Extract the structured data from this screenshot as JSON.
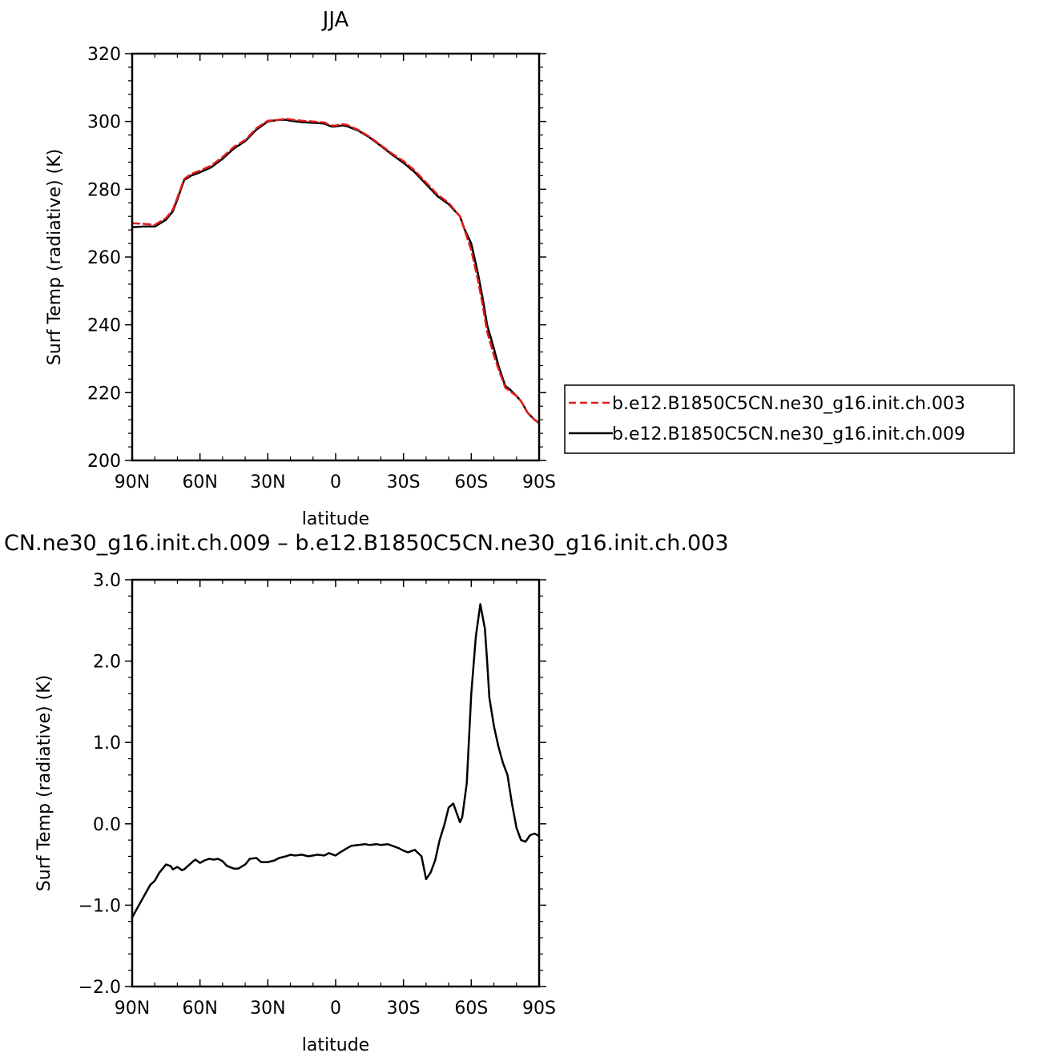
{
  "chart_data": [
    {
      "type": "line",
      "title": "JJA",
      "xlabel": "latitude",
      "ylabel": "Surf Temp (radiative) (K)",
      "xlim": [
        90,
        -90
      ],
      "ylim": [
        200,
        320
      ],
      "x_ticks": [
        90,
        60,
        30,
        0,
        -30,
        -60,
        -90
      ],
      "x_tick_labels": [
        "90N",
        "60N",
        "30N",
        "0",
        "30S",
        "60S",
        "90S"
      ],
      "y_ticks": [
        200,
        220,
        240,
        260,
        280,
        300,
        320
      ],
      "y_tick_labels": [
        "200",
        "220",
        "240",
        "260",
        "280",
        "300",
        "320"
      ],
      "legend_placement": "right, outside plot",
      "series": [
        {
          "name": "b.e12.B1850C5CN.ne30_g16.init.ch.003",
          "color": "#e41a1c",
          "dash": "dashed",
          "x": [
            90,
            85,
            80,
            75,
            72,
            70,
            67,
            64,
            60,
            55,
            50,
            45,
            40,
            35,
            30,
            25,
            22,
            20,
            15,
            10,
            5,
            2,
            0,
            -3,
            -5,
            -10,
            -15,
            -20,
            -25,
            -30,
            -35,
            -40,
            -45,
            -50,
            -55,
            -57,
            -60,
            -63,
            -65,
            -67,
            -70,
            -72,
            -75,
            -77,
            -80,
            -82,
            -85,
            -88,
            -90
          ],
          "y": [
            270,
            269.8,
            269.5,
            271.5,
            274,
            277.5,
            283,
            284.5,
            285.5,
            287,
            289.5,
            292.5,
            294.5,
            298,
            300.2,
            300.5,
            300.8,
            300.6,
            300.2,
            300,
            299.7,
            298.8,
            298.8,
            299.2,
            299,
            297.5,
            295.5,
            293,
            290.5,
            288.3,
            285.5,
            282,
            278.5,
            276,
            272,
            268,
            262,
            253,
            246,
            238,
            231,
            227,
            221.5,
            220.5,
            219,
            217.5,
            214,
            212,
            211
          ]
        },
        {
          "name": "b.e12.B1850C5CN.ne30_g16.init.ch.009",
          "color": "#000000",
          "dash": "solid",
          "x": [
            90,
            85,
            80,
            75,
            72,
            70,
            67,
            64,
            60,
            55,
            50,
            45,
            40,
            35,
            30,
            25,
            22,
            20,
            15,
            10,
            5,
            2,
            0,
            -3,
            -5,
            -10,
            -15,
            -20,
            -25,
            -30,
            -35,
            -40,
            -45,
            -50,
            -55,
            -57,
            -60,
            -63,
            -65,
            -67,
            -70,
            -72,
            -75,
            -77,
            -80,
            -82,
            -85,
            -88,
            -90
          ],
          "y": [
            268.8,
            269,
            269,
            271,
            273.5,
            277,
            282.7,
            284,
            285,
            286.5,
            289,
            292,
            294.2,
            297.6,
            300,
            300.5,
            300.5,
            300.2,
            299.8,
            299.6,
            299.4,
            298.5,
            298.5,
            298.8,
            298.6,
            297.3,
            295.3,
            292.8,
            290.2,
            287.8,
            285,
            281.5,
            278,
            275.6,
            272,
            268.2,
            264,
            255,
            248,
            240,
            233,
            228,
            222,
            221,
            219,
            217.5,
            214,
            212,
            211
          ]
        }
      ]
    },
    {
      "type": "line",
      "title": "CN.ne30_g16.init.ch.009 – b.e12.B1850C5CN.ne30_g16.init.ch.003",
      "xlabel": "latitude",
      "ylabel": "Surf Temp (radiative) (K)",
      "xlim": [
        90,
        -90
      ],
      "ylim": [
        -2.0,
        3.0
      ],
      "x_ticks": [
        90,
        60,
        30,
        0,
        -30,
        -60,
        -90
      ],
      "x_tick_labels": [
        "90N",
        "60N",
        "30N",
        "0",
        "30S",
        "60S",
        "90S"
      ],
      "y_ticks": [
        -2.0,
        -1.0,
        0.0,
        1.0,
        2.0,
        3.0
      ],
      "y_tick_labels": [
        "−2.0",
        "−1.0",
        "0.0",
        "1.0",
        "2.0",
        "3.0"
      ],
      "series": [
        {
          "color": "#000000",
          "dash": "solid",
          "x": [
            90,
            88,
            85,
            82,
            80,
            78,
            75,
            73,
            72,
            70,
            68,
            67,
            65,
            63,
            62,
            60,
            58,
            56,
            54,
            52,
            50,
            48,
            45,
            43,
            40,
            38,
            35,
            33,
            30,
            27,
            25,
            22,
            20,
            18,
            15,
            12,
            10,
            8,
            5,
            3,
            0,
            -2,
            -5,
            -7,
            -10,
            -13,
            -15,
            -18,
            -20,
            -23,
            -25,
            -28,
            -30,
            -32,
            -35,
            -38,
            -40,
            -42,
            -44,
            -46,
            -48,
            -50,
            -52,
            -55,
            -56,
            -58,
            -60,
            -62,
            -64,
            -66,
            -67,
            -68,
            -70,
            -72,
            -74,
            -76,
            -78,
            -80,
            -82,
            -84,
            -86,
            -88,
            -90
          ],
          "y": [
            -1.15,
            -1.05,
            -0.9,
            -0.75,
            -0.7,
            -0.6,
            -0.5,
            -0.52,
            -0.56,
            -0.53,
            -0.57,
            -0.56,
            -0.51,
            -0.46,
            -0.44,
            -0.48,
            -0.45,
            -0.43,
            -0.44,
            -0.43,
            -0.46,
            -0.52,
            -0.55,
            -0.55,
            -0.5,
            -0.43,
            -0.42,
            -0.47,
            -0.47,
            -0.45,
            -0.42,
            -0.4,
            -0.38,
            -0.39,
            -0.38,
            -0.4,
            -0.39,
            -0.38,
            -0.39,
            -0.36,
            -0.39,
            -0.35,
            -0.3,
            -0.27,
            -0.26,
            -0.25,
            -0.26,
            -0.25,
            -0.26,
            -0.25,
            -0.27,
            -0.3,
            -0.33,
            -0.35,
            -0.32,
            -0.4,
            -0.68,
            -0.6,
            -0.45,
            -0.2,
            -0.02,
            0.2,
            0.25,
            0.02,
            0.08,
            0.5,
            1.6,
            2.3,
            2.7,
            2.4,
            2.0,
            1.55,
            1.2,
            0.95,
            0.75,
            0.6,
            0.25,
            -0.05,
            -0.2,
            -0.22,
            -0.14,
            -0.12,
            -0.15
          ]
        }
      ]
    }
  ]
}
